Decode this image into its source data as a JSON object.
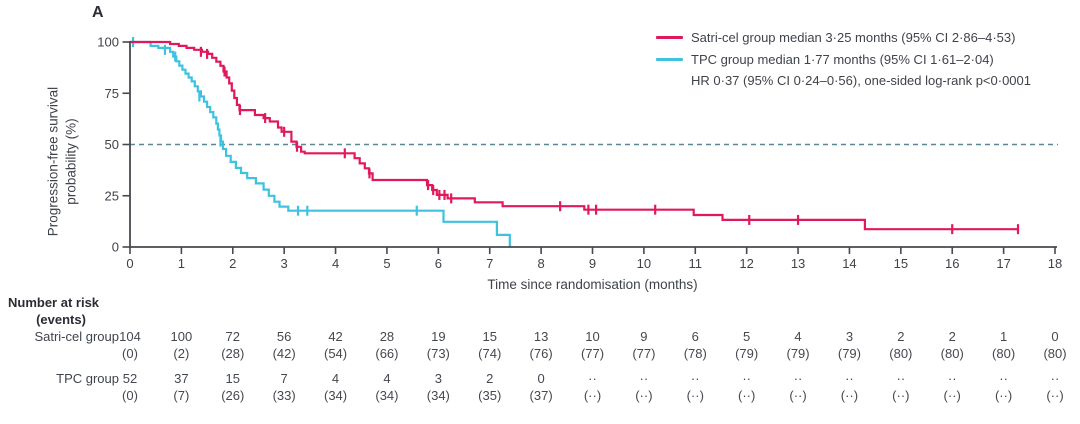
{
  "panel_label": "A",
  "legend": {
    "series": [
      {
        "label": "Satri-cel group median 3·25 months (95% CI 2·86–4·53)",
        "color": "#e01a5a"
      },
      {
        "label": "TPC group median 1·77 months (95% CI 1·61–2·04)",
        "color": "#3ec2e0"
      }
    ],
    "stats_line": "HR 0·37 (95% CI 0·24–0·56), one-sided log-rank p<0·0001"
  },
  "chart_data": {
    "type": "line",
    "subtype": "kaplan-meier-step",
    "xlabel": "Time since randomisation (months)",
    "ylabel": "Progression-free survival probability (%)",
    "ylabel_lines": [
      "Progression-free survival",
      "probability (%)"
    ],
    "xlim": [
      0,
      18
    ],
    "ylim": [
      0,
      100
    ],
    "x_ticks": [
      0,
      1,
      2,
      3,
      4,
      5,
      6,
      7,
      8,
      9,
      10,
      11,
      12,
      13,
      14,
      15,
      16,
      17,
      18
    ],
    "y_ticks": [
      0,
      25,
      50,
      75,
      100
    ],
    "grid": false,
    "legend_position": "top-right",
    "axis_color": "#46494f",
    "reference_line_y": 50,
    "reference_line_style": "dashed",
    "reference_line_color": "#5d8795",
    "series": [
      {
        "name": "Satri-cel group",
        "color": "#e01a5a",
        "median_months": 3.25,
        "ci95": "2.86-4.53",
        "points": [
          [
            0,
            100
          ],
          [
            0.78,
            99
          ],
          [
            0.95,
            98.1
          ],
          [
            1.1,
            97.1
          ],
          [
            1.25,
            96.2
          ],
          [
            1.4,
            95.2
          ],
          [
            1.52,
            94.2
          ],
          [
            1.6,
            92.3
          ],
          [
            1.68,
            90.4
          ],
          [
            1.76,
            88.4
          ],
          [
            1.82,
            85.6
          ],
          [
            1.88,
            82.7
          ],
          [
            1.93,
            79.8
          ],
          [
            1.98,
            76.3
          ],
          [
            2.03,
            72.7
          ],
          [
            2.08,
            69.3
          ],
          [
            2.13,
            66.8
          ],
          [
            2.43,
            64.4
          ],
          [
            2.6,
            62.9
          ],
          [
            2.72,
            61.2
          ],
          [
            2.88,
            58.3
          ],
          [
            2.95,
            56.2
          ],
          [
            3.14,
            51.4
          ],
          [
            3.24,
            48.9
          ],
          [
            3.33,
            46.5
          ],
          [
            3.4,
            45.7
          ],
          [
            4.37,
            43.3
          ],
          [
            4.47,
            40.8
          ],
          [
            4.57,
            38.4
          ],
          [
            4.65,
            35.9
          ],
          [
            4.72,
            32.7
          ],
          [
            5.78,
            30.2
          ],
          [
            5.88,
            27.8
          ],
          [
            5.97,
            25.4
          ],
          [
            6.18,
            23.7
          ],
          [
            6.71,
            21.8
          ],
          [
            7.25,
            19.9
          ],
          [
            8.84,
            18.2
          ],
          [
            10.97,
            15.6
          ],
          [
            11.53,
            13.2
          ],
          [
            14.3,
            8.7
          ]
        ],
        "censors": [
          [
            1.38,
            95.2
          ],
          [
            1.5,
            94.2
          ],
          [
            1.84,
            85.6
          ],
          [
            2.14,
            66.8
          ],
          [
            2.63,
            62.9
          ],
          [
            3.0,
            56.2
          ],
          [
            3.25,
            48.9
          ],
          [
            4.18,
            45.7
          ],
          [
            4.66,
            35.9
          ],
          [
            5.8,
            30.2
          ],
          [
            5.9,
            27.8
          ],
          [
            6.02,
            25.4
          ],
          [
            6.12,
            25.4
          ],
          [
            6.25,
            23.7
          ],
          [
            8.37,
            19.9
          ],
          [
            8.92,
            18.2
          ],
          [
            9.07,
            18.2
          ],
          [
            10.22,
            18.2
          ],
          [
            12.05,
            13.2
          ],
          [
            13.0,
            13.2
          ],
          [
            16.0,
            8.7
          ],
          [
            17.28,
            8.7
          ]
        ],
        "end_x": 17.3
      },
      {
        "name": "TPC group",
        "color": "#3ec2e0",
        "median_months": 1.77,
        "ci95": "1.61-2.04",
        "points": [
          [
            0,
            100
          ],
          [
            0.4,
            98.1
          ],
          [
            0.55,
            97.1
          ],
          [
            0.78,
            95.2
          ],
          [
            0.84,
            92.9
          ],
          [
            0.9,
            90.6
          ],
          [
            0.96,
            88.5
          ],
          [
            1.02,
            86.5
          ],
          [
            1.08,
            84.6
          ],
          [
            1.14,
            82.7
          ],
          [
            1.2,
            80.8
          ],
          [
            1.26,
            78.4
          ],
          [
            1.32,
            75.9
          ],
          [
            1.38,
            73.4
          ],
          [
            1.44,
            70.9
          ],
          [
            1.5,
            68.3
          ],
          [
            1.56,
            65.8
          ],
          [
            1.62,
            63.2
          ],
          [
            1.68,
            60.2
          ],
          [
            1.71,
            57.3
          ],
          [
            1.74,
            54.4
          ],
          [
            1.77,
            51.4
          ],
          [
            1.81,
            47.8
          ],
          [
            1.87,
            44.5
          ],
          [
            1.96,
            41.5
          ],
          [
            2.06,
            38.6
          ],
          [
            2.16,
            36.1
          ],
          [
            2.28,
            33.6
          ],
          [
            2.45,
            31
          ],
          [
            2.6,
            28
          ],
          [
            2.7,
            25
          ],
          [
            2.81,
            22.1
          ],
          [
            2.91,
            19.7
          ],
          [
            3.08,
            17.7
          ],
          [
            6.1,
            12.3
          ],
          [
            7.14,
            5.9
          ],
          [
            7.39,
            0.4
          ]
        ],
        "censors": [
          [
            0.06,
            100
          ],
          [
            0.68,
            96.2
          ],
          [
            0.88,
            92.9
          ],
          [
            1.35,
            73.4
          ],
          [
            1.76,
            51.4
          ],
          [
            3.27,
            17.7
          ],
          [
            3.45,
            17.7
          ],
          [
            5.58,
            17.7
          ]
        ],
        "end_x": 7.42
      }
    ]
  },
  "at_risk_table": {
    "header_line1": "Number at risk",
    "header_line2": "(events)",
    "rows": [
      {
        "label": "Satri-cel group",
        "at_risk": [
          "104",
          "100",
          "72",
          "56",
          "42",
          "28",
          "19",
          "15",
          "13",
          "10",
          "9",
          "6",
          "5",
          "4",
          "3",
          "2",
          "2",
          "1",
          "0"
        ],
        "events": [
          "(0)",
          "(2)",
          "(28)",
          "(42)",
          "(54)",
          "(66)",
          "(73)",
          "(74)",
          "(76)",
          "(77)",
          "(77)",
          "(78)",
          "(79)",
          "(79)",
          "(79)",
          "(80)",
          "(80)",
          "(80)",
          "(80)"
        ]
      },
      {
        "label": "TPC group",
        "at_risk": [
          "52",
          "37",
          "15",
          "7",
          "4",
          "4",
          "3",
          "2",
          "0",
          "··",
          "··",
          "··",
          "··",
          "··",
          "··",
          "··",
          "··",
          "··",
          "··"
        ],
        "events": [
          "(0)",
          "(7)",
          "(26)",
          "(33)",
          "(34)",
          "(34)",
          "(34)",
          "(35)",
          "(37)",
          "(··)",
          "(··)",
          "(··)",
          "(··)",
          "(··)",
          "(··)",
          "(··)",
          "(··)",
          "(··)",
          "(··)"
        ]
      }
    ]
  }
}
